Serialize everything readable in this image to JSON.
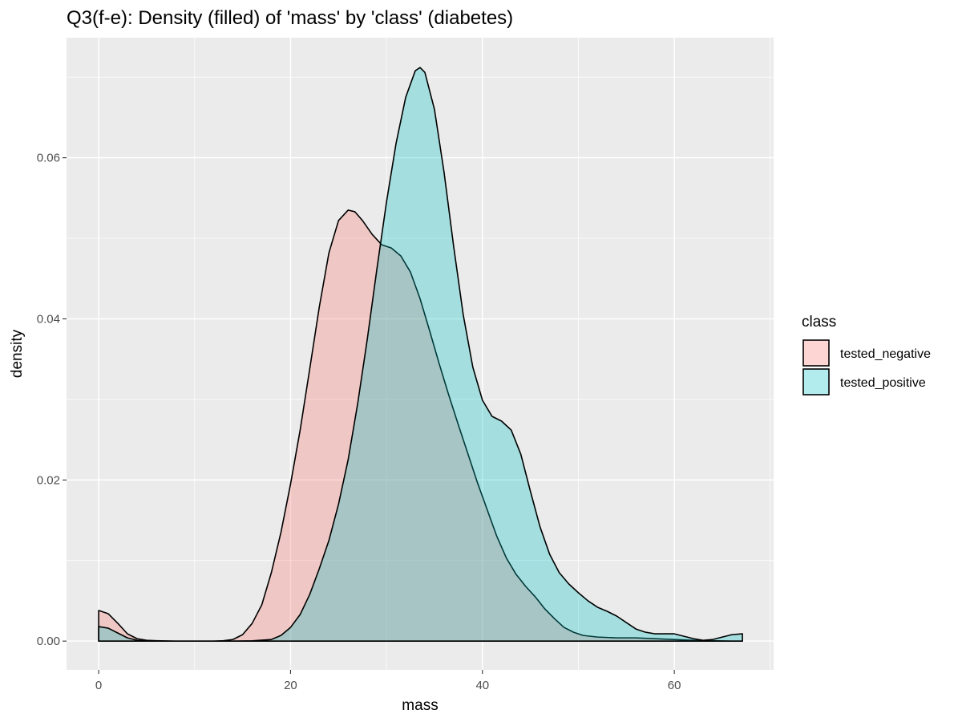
{
  "chart_data": {
    "type": "area",
    "title": "Q3(f-e): Density (filled) of 'mass' by 'class' (diabetes)",
    "xlabel": "mass",
    "ylabel": "density",
    "xlim": [
      -3.35,
      70.35
    ],
    "ylim": [
      -0.00357,
      0.0749
    ],
    "x_ticks": [
      0,
      20,
      40,
      60
    ],
    "x_tick_labels": [
      "0",
      "20",
      "40",
      "60"
    ],
    "y_ticks": [
      0.0,
      0.02,
      0.04,
      0.06
    ],
    "y_tick_labels": [
      "0.00",
      "0.02",
      "0.04",
      "0.06"
    ],
    "grid": true,
    "legend": {
      "title": "class",
      "position": "right"
    },
    "series": [
      {
        "name": "tested_negative",
        "fill": "#F8766D",
        "fill_opacity": 0.3,
        "x": [
          0,
          1,
          2,
          3,
          4,
          5,
          6,
          8,
          10,
          12,
          13,
          14,
          15,
          16,
          17,
          18,
          19,
          20,
          21,
          22,
          23,
          24,
          25,
          26,
          26.7,
          27.5,
          28.5,
          29.5,
          30.5,
          31.5,
          32.5,
          33.5,
          34.5,
          35.5,
          36.5,
          37.5,
          38.5,
          39.5,
          40.5,
          41.5,
          42.5,
          43.5,
          44.5,
          45.5,
          46.5,
          47.5,
          48.5,
          49.5,
          50.5,
          52,
          54,
          56,
          58,
          60,
          62,
          64,
          66,
          67.1
        ],
        "y": [
          0.0038,
          0.0034,
          0.0022,
          0.0009,
          0.0003,
          0.0001,
          5e-05,
          0.0,
          0.0,
          0.0,
          5e-05,
          0.0002,
          0.0008,
          0.0022,
          0.0045,
          0.0085,
          0.0135,
          0.0195,
          0.0262,
          0.0338,
          0.0415,
          0.0482,
          0.0522,
          0.0535,
          0.0533,
          0.0522,
          0.0505,
          0.0492,
          0.0488,
          0.0478,
          0.0458,
          0.0425,
          0.0385,
          0.0344,
          0.0305,
          0.0268,
          0.0232,
          0.0196,
          0.0163,
          0.013,
          0.0103,
          0.0083,
          0.0068,
          0.0055,
          0.004,
          0.0028,
          0.0017,
          0.0011,
          0.0007,
          0.0005,
          0.0004,
          0.0004,
          0.0003,
          0.0002,
          0.0001,
          5e-05,
          0.0,
          0.0
        ]
      },
      {
        "name": "tested_positive",
        "fill": "#00BFC4",
        "fill_opacity": 0.3,
        "x": [
          0,
          1,
          2,
          3,
          4,
          5,
          6,
          8,
          10,
          12,
          14,
          16,
          18,
          19,
          20,
          21,
          22,
          23,
          24,
          25,
          26,
          27,
          28,
          29,
          30,
          31,
          32,
          33,
          33.5,
          34,
          35,
          36,
          37,
          38,
          39,
          40,
          41,
          42,
          43,
          44,
          45,
          46,
          47,
          48,
          49,
          50,
          51,
          52,
          53,
          54,
          55,
          56,
          57,
          58,
          59,
          60,
          61,
          62,
          63,
          64,
          65,
          66,
          67.1
        ],
        "y": [
          0.0018,
          0.0016,
          0.001,
          0.0004,
          0.0001,
          0.0,
          0.0,
          0.0,
          0.0,
          0.0,
          0.0,
          3e-05,
          0.0002,
          0.0007,
          0.0017,
          0.0033,
          0.0058,
          0.009,
          0.0125,
          0.017,
          0.0225,
          0.0295,
          0.0375,
          0.0462,
          0.0545,
          0.0618,
          0.0675,
          0.0708,
          0.0712,
          0.0706,
          0.066,
          0.0582,
          0.049,
          0.0405,
          0.034,
          0.0299,
          0.0279,
          0.0273,
          0.0262,
          0.0232,
          0.0186,
          0.0142,
          0.0108,
          0.0085,
          0.0071,
          0.006,
          0.005,
          0.0042,
          0.0037,
          0.0031,
          0.0023,
          0.0015,
          0.0011,
          0.0009,
          0.0009,
          0.0009,
          0.0006,
          0.0003,
          0.0001,
          0.0002,
          0.0005,
          0.0008,
          0.0009
        ]
      }
    ]
  }
}
